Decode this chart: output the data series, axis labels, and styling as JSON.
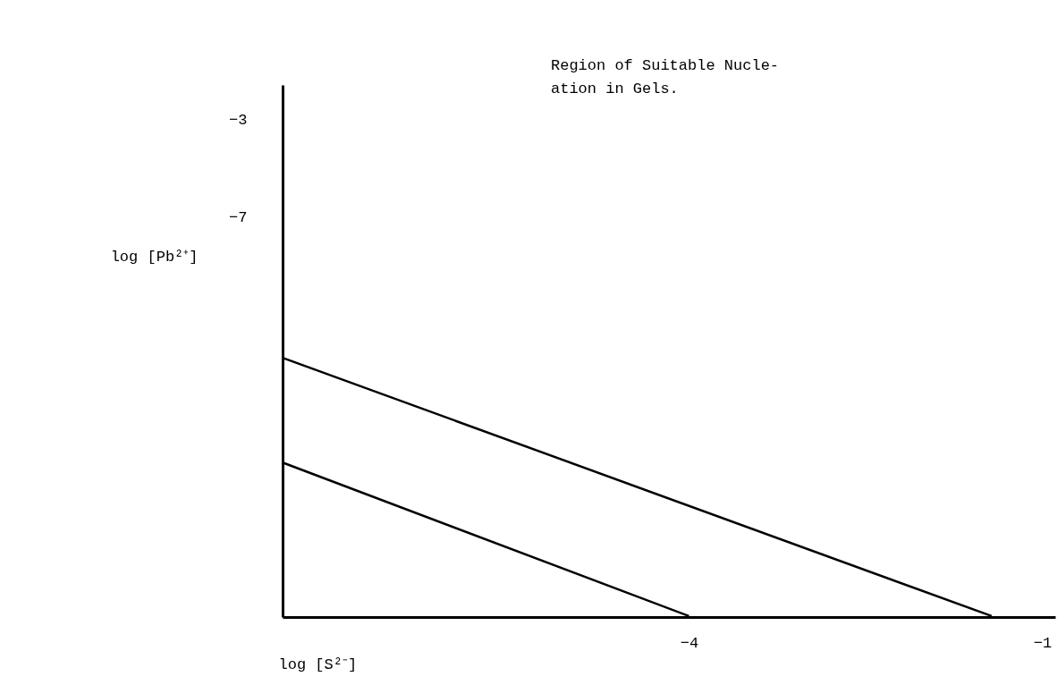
{
  "chart_data": {
    "type": "line",
    "xlabel": "log [S²⁻]",
    "ylabel": "log [Pb²⁺]",
    "series": [
      {
        "color": "#000000",
        "x": [
          -7.45,
          -1.43
        ],
        "values": [
          -12.8,
          -23.4
        ]
      },
      {
        "color": "#000000",
        "x": [
          -7.45,
          -4.0
        ],
        "values": [
          -17.1,
          -23.4
        ]
      }
    ],
    "xlim": [
      -7.45,
      -0.89
    ],
    "ylim": [
      -23.44,
      -1.6
    ],
    "xticks": [
      -4,
      -1
    ],
    "yticks": [
      -3,
      -7
    ],
    "annotations": [
      "Region of Suitable Nucle-\nation in Gels."
    ],
    "grid": false,
    "legend": false,
    "marker": "none",
    "line_style": "solid"
  }
}
